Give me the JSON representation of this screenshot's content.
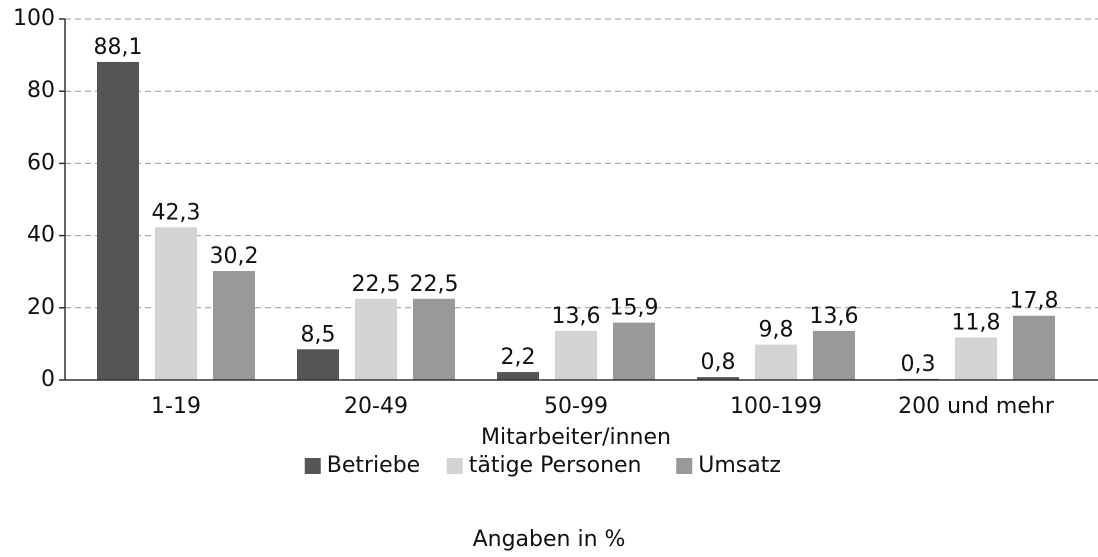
{
  "chart_data": {
    "type": "bar",
    "x_label": "Mitarbeiter/innen",
    "annotation": "Angaben in %",
    "categories": [
      "1-19",
      "20-49",
      "50-99",
      "100-199",
      "200 und mehr"
    ],
    "series": [
      {
        "name": "Betriebe",
        "color": "#555555",
        "values": [
          88.1,
          8.5,
          2.2,
          0.8,
          0.3
        ],
        "value_labels": [
          "88,1",
          "8,5",
          "2,2",
          "0,8",
          "0,3"
        ]
      },
      {
        "name": "tätige Personen",
        "color": "#d3d3d3",
        "values": [
          42.3,
          22.5,
          13.6,
          9.8,
          11.8
        ],
        "value_labels": [
          "42,3",
          "22,5",
          "13,6",
          "9,8",
          "11,8"
        ]
      },
      {
        "name": "Umsatz",
        "color": "#999999",
        "values": [
          30.2,
          22.5,
          15.9,
          13.6,
          17.8
        ],
        "value_labels": [
          "30,2",
          "22,5",
          "15,9",
          "13,6",
          "17,8"
        ]
      }
    ],
    "ylim": [
      0,
      100
    ],
    "yticks": [
      0,
      20,
      40,
      60,
      80,
      100
    ],
    "grid": true,
    "legend": "bottom"
  }
}
